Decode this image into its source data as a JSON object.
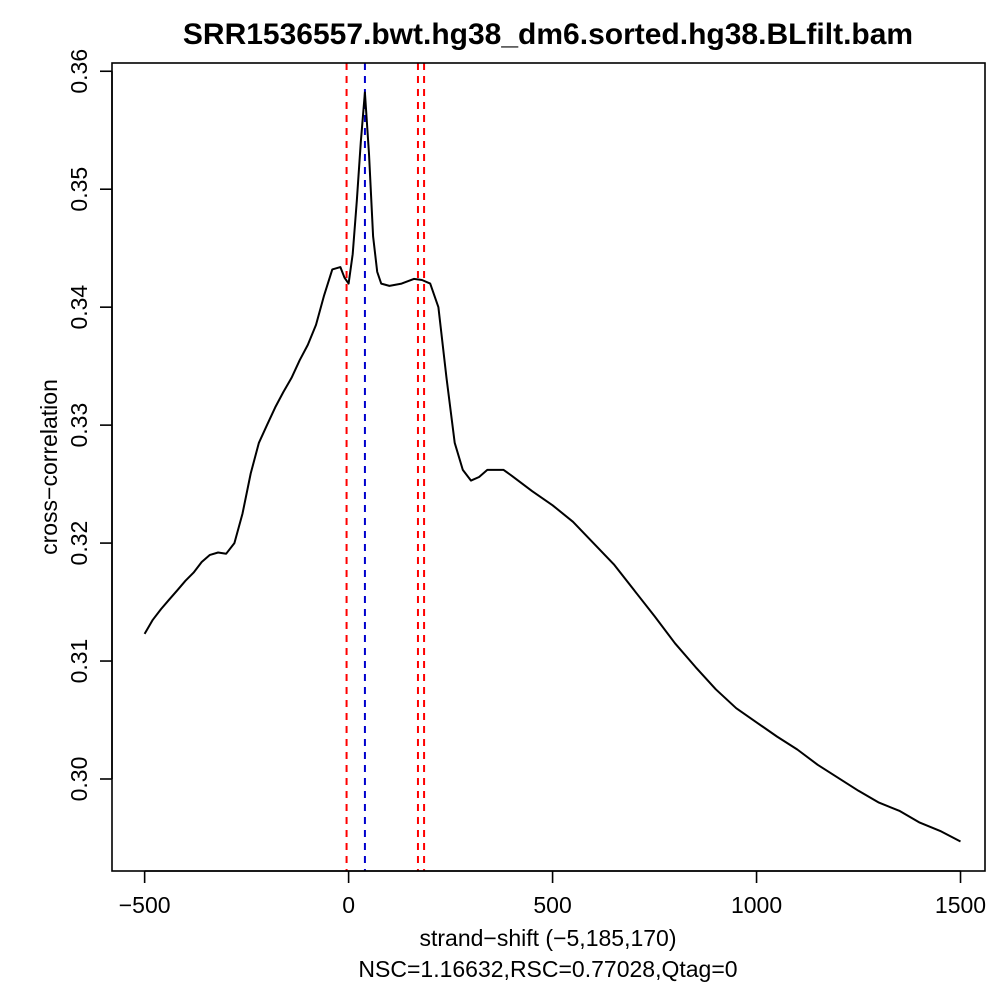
{
  "chart_data": {
    "type": "line",
    "title": "SRR1536557.bwt.hg38_dm6.sorted.hg38.BLfilt.bam",
    "xlabel": "strand−shift (−5,185,170)",
    "ylabel": "cross−correlation",
    "footer": "NSC=1.16632,RSC=0.77028,Qtag=0",
    "xlim": [
      -580,
      1560
    ],
    "ylim": [
      0.2922,
      0.3607
    ],
    "x_ticks": [
      {
        "value": -500,
        "label": "−500"
      },
      {
        "value": 0,
        "label": "0"
      },
      {
        "value": 500,
        "label": "500"
      },
      {
        "value": 1000,
        "label": "1000"
      },
      {
        "value": 1500,
        "label": "1500"
      }
    ],
    "y_ticks": [
      {
        "value": 0.3,
        "label": "0.30"
      },
      {
        "value": 0.31,
        "label": "0.31"
      },
      {
        "value": 0.32,
        "label": "0.32"
      },
      {
        "value": 0.33,
        "label": "0.33"
      },
      {
        "value": 0.34,
        "label": "0.34"
      },
      {
        "value": 0.35,
        "label": "0.35"
      },
      {
        "value": 0.36,
        "label": "0.36"
      }
    ],
    "grid": false,
    "legend": "none",
    "series": [
      {
        "color": "#000000",
        "x": [
          -500,
          -480,
          -460,
          -440,
          -420,
          -400,
          -380,
          -360,
          -340,
          -320,
          -300,
          -280,
          -260,
          -240,
          -220,
          -200,
          -180,
          -160,
          -140,
          -120,
          -100,
          -80,
          -60,
          -40,
          -20,
          -10,
          0,
          10,
          20,
          30,
          40,
          50,
          60,
          70,
          80,
          100,
          130,
          160,
          180,
          200,
          220,
          240,
          260,
          280,
          300,
          320,
          340,
          360,
          380,
          400,
          450,
          500,
          550,
          600,
          650,
          700,
          750,
          800,
          850,
          900,
          950,
          1000,
          1050,
          1100,
          1150,
          1200,
          1250,
          1300,
          1350,
          1400,
          1450,
          1500
        ],
        "y": [
          0.3123,
          0.3135,
          0.3144,
          0.3152,
          0.316,
          0.3168,
          0.3175,
          0.3184,
          0.319,
          0.3192,
          0.3191,
          0.32,
          0.3225,
          0.3259,
          0.3285,
          0.33,
          0.3315,
          0.3328,
          0.334,
          0.3355,
          0.3368,
          0.3385,
          0.341,
          0.3432,
          0.3434,
          0.3425,
          0.342,
          0.3445,
          0.349,
          0.354,
          0.3582,
          0.353,
          0.346,
          0.343,
          0.342,
          0.3418,
          0.342,
          0.3424,
          0.3423,
          0.342,
          0.34,
          0.334,
          0.3285,
          0.3262,
          0.3253,
          0.3256,
          0.3262,
          0.3262,
          0.3262,
          0.3257,
          0.3244,
          0.3232,
          0.3218,
          0.32,
          0.3182,
          0.316,
          0.3138,
          0.3115,
          0.3095,
          0.3076,
          0.306,
          0.3048,
          0.3036,
          0.3025,
          0.3012,
          0.3001,
          0.299,
          0.298,
          0.2973,
          0.2963,
          0.2956,
          0.2947
        ]
      }
    ],
    "vlines": [
      {
        "x": -5,
        "color": "#ff0000"
      },
      {
        "x": 40,
        "color": "#0000cd"
      },
      {
        "x": 170,
        "color": "#ff0000"
      },
      {
        "x": 185,
        "color": "#ff0000"
      }
    ]
  }
}
